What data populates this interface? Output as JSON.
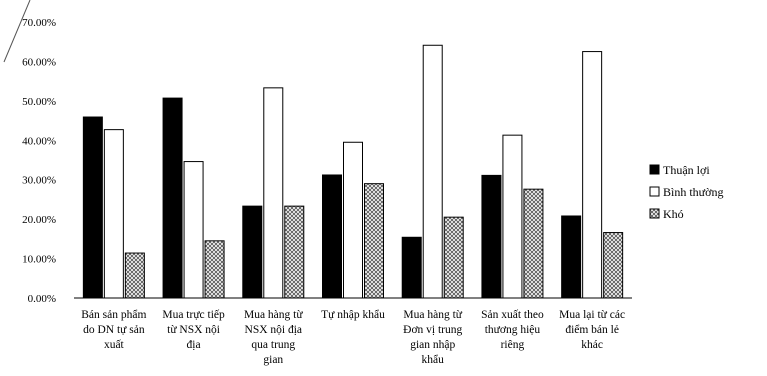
{
  "chart_data": {
    "type": "bar",
    "categories": [
      [
        "Bán sản phẩm",
        "do DN tự sản",
        "xuất"
      ],
      [
        "Mua trực tiếp",
        "từ NSX nội",
        "địa"
      ],
      [
        "Mua hàng từ",
        "NSX nội địa",
        "qua trung",
        "gian"
      ],
      [
        "Tự nhập khẩu"
      ],
      [
        "Mua hàng từ",
        "Đơn vị trung",
        "gian nhập",
        "khẩu"
      ],
      [
        "Sản xuất theo",
        "thương hiệu",
        "riêng"
      ],
      [
        "Mua lại từ các",
        "điểm bán lẻ",
        "khác"
      ]
    ],
    "series": [
      {
        "name": "Thuận lợi",
        "values": [
          45.9,
          50.7,
          23.3,
          31.2,
          15.4,
          31.1,
          20.8
        ],
        "color": "#000000",
        "pattern": "solid"
      },
      {
        "name": "Bình thường",
        "values": [
          42.7,
          34.6,
          53.3,
          39.5,
          64.1,
          41.3,
          62.5
        ],
        "color": "#ffffff",
        "pattern": "outline"
      },
      {
        "name": "Khó",
        "values": [
          11.4,
          14.5,
          23.3,
          29.0,
          20.5,
          27.6,
          16.6
        ],
        "color": "#bdbdbd",
        "pattern": "crosshatch"
      }
    ],
    "y_ticks": [
      "0.00%",
      "10.00%",
      "20.00%",
      "30.00%",
      "40.00%",
      "50.00%",
      "60.00%",
      "70.00%"
    ],
    "ylim": [
      0,
      70
    ],
    "grid": false,
    "legend_position": "right",
    "title": "",
    "xlabel": "",
    "ylabel": ""
  }
}
